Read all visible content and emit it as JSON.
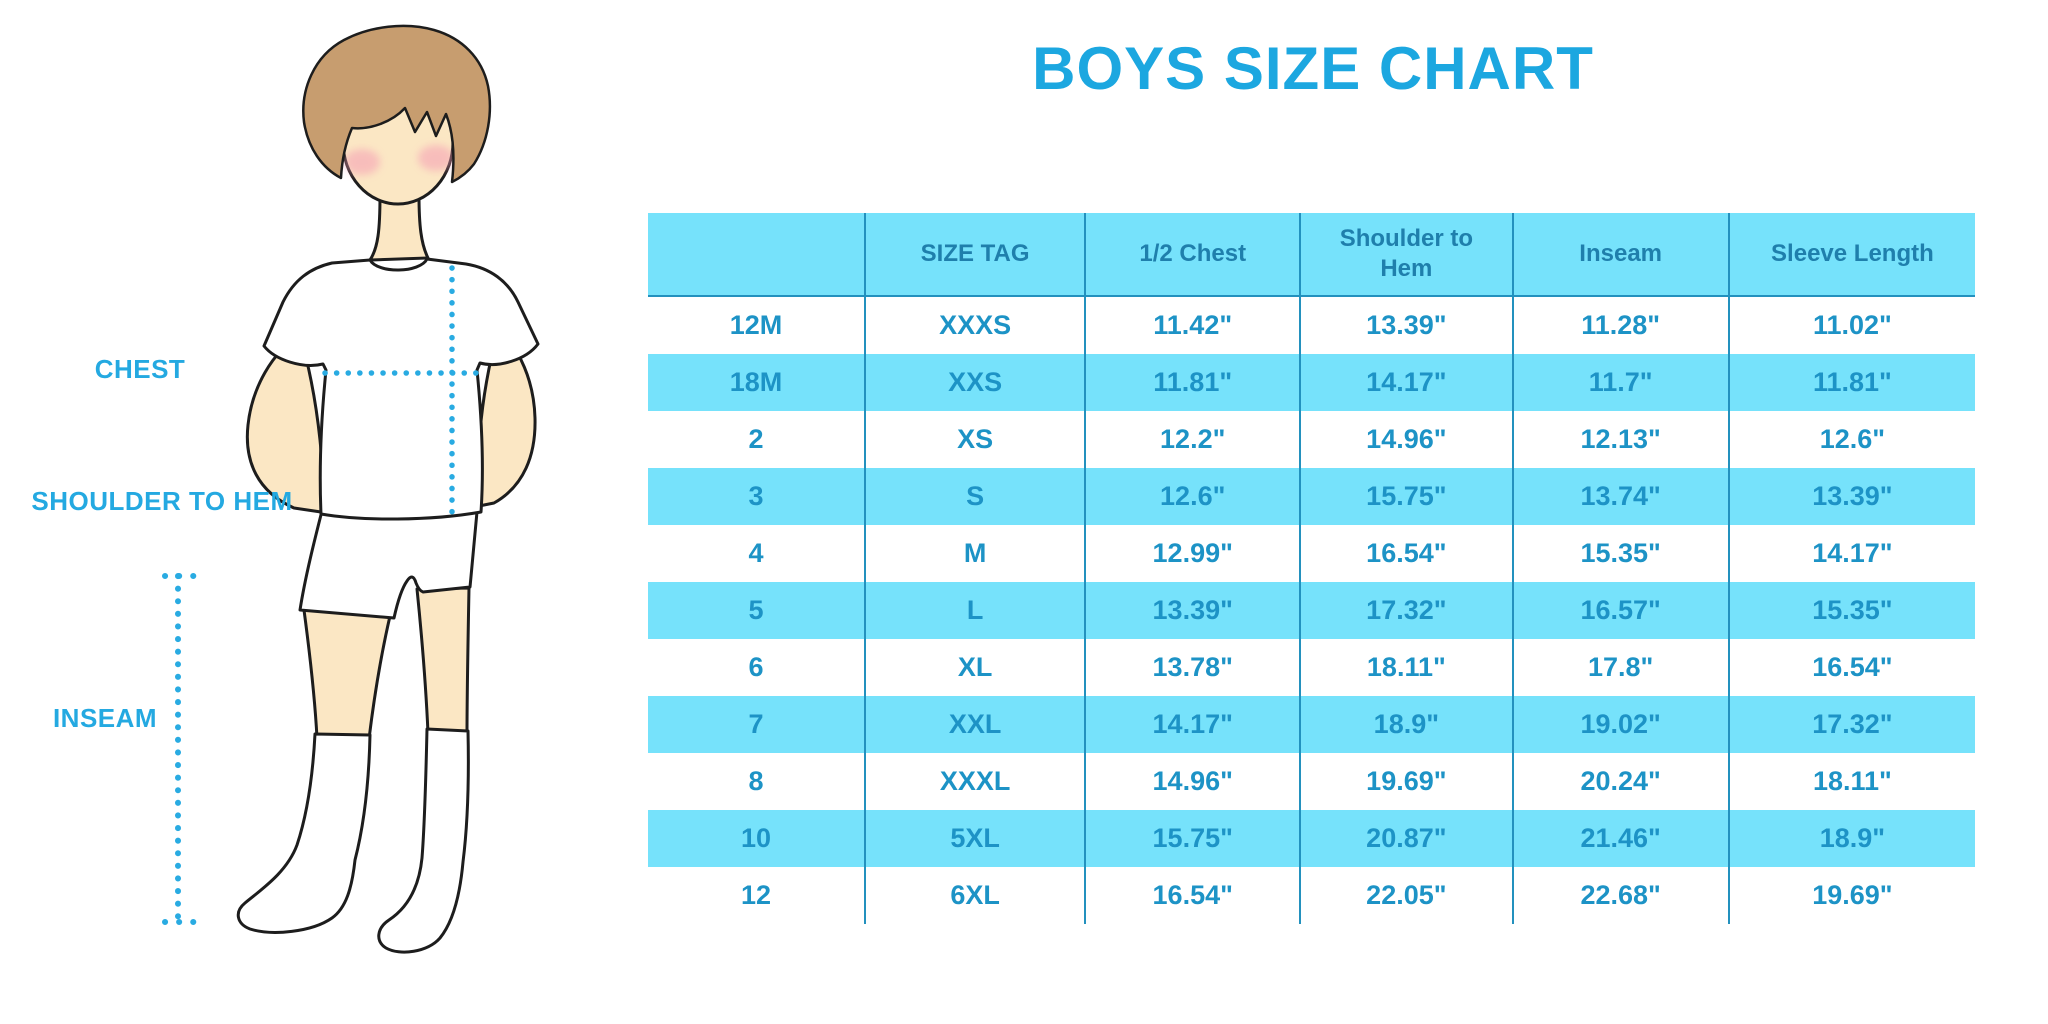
{
  "title": "BOYS SIZE CHART",
  "illustration": {
    "figure": "boy-in-tshirt-shorts-and-knee-socks",
    "labels": {
      "chest": "CHEST",
      "shoulder_to_hem": "SHOULDER TO HEM",
      "inseam": "INSEAM"
    }
  },
  "colors": {
    "title_blue": "#1CA7E0",
    "label_blue": "#24A9E1",
    "table_row_blue": "#76E2FB",
    "table_line_blue": "#2391BE",
    "header_text_blue": "#1F7FAC",
    "cell_text_blue": "#1D93C6",
    "dotted_line_blue": "#29ABE2",
    "skin": "#FBE7C4",
    "hair": "#C79D6F"
  },
  "chart_data": {
    "type": "table",
    "title": "BOYS SIZE CHART",
    "columns": [
      "",
      "SIZE TAG",
      "1/2 Chest",
      "Shoulder to Hem",
      "Inseam",
      "Sleeve Length"
    ],
    "rows": [
      [
        "12M",
        "XXXS",
        "11.42\"",
        "13.39\"",
        "11.28\"",
        "11.02\""
      ],
      [
        "18M",
        "XXS",
        "11.81\"",
        "14.17\"",
        "11.7\"",
        "11.81\""
      ],
      [
        "2",
        "XS",
        "12.2\"",
        "14.96\"",
        "12.13\"",
        "12.6\""
      ],
      [
        "3",
        "S",
        "12.6\"",
        "15.75\"",
        "13.74\"",
        "13.39\""
      ],
      [
        "4",
        "M",
        "12.99\"",
        "16.54\"",
        "15.35\"",
        "14.17\""
      ],
      [
        "5",
        "L",
        "13.39\"",
        "17.32\"",
        "16.57\"",
        "15.35\""
      ],
      [
        "6",
        "XL",
        "13.78\"",
        "18.11\"",
        "17.8\"",
        "16.54\""
      ],
      [
        "7",
        "XXL",
        "14.17\"",
        "18.9\"",
        "19.02\"",
        "17.32\""
      ],
      [
        "8",
        "XXXL",
        "14.96\"",
        "19.69\"",
        "20.24\"",
        "18.11\""
      ],
      [
        "10",
        "5XL",
        "15.75\"",
        "20.87\"",
        "21.46\"",
        "18.9\""
      ],
      [
        "12",
        "6XL",
        "16.54\"",
        "22.05\"",
        "22.68\"",
        "19.69\""
      ]
    ]
  }
}
